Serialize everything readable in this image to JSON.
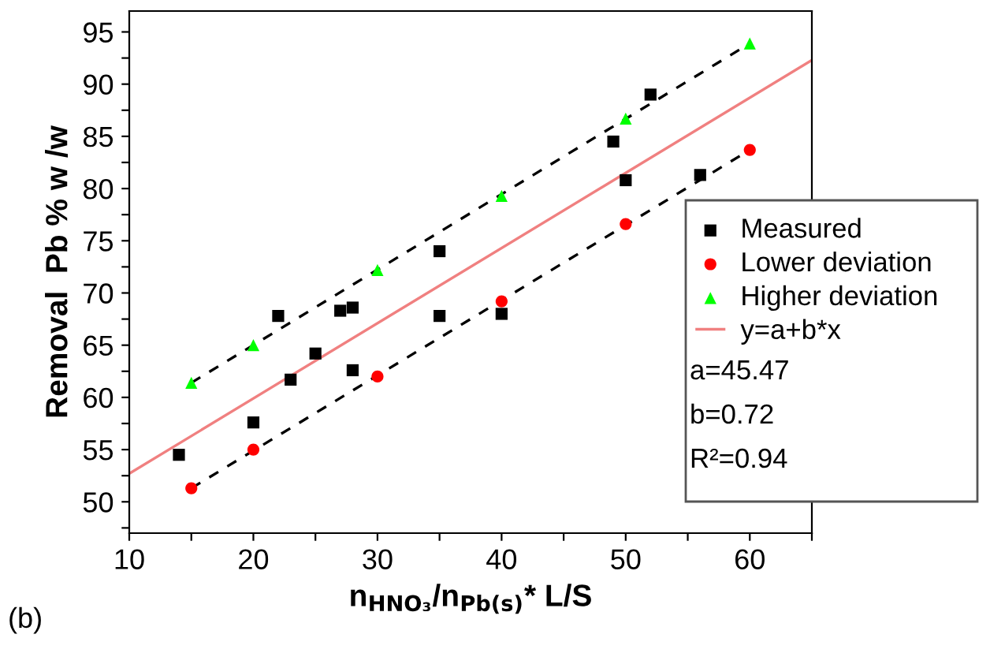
{
  "chart_data": {
    "type": "scatter",
    "xlabel": "n$_{HNO₃}$/n$_{Pb(s)}$* L/S",
    "ylabel": "Removal  Pb % w /w",
    "series": [
      {
        "name": "Measured",
        "marker": "square",
        "color": "#000000",
        "x": [
          14,
          20,
          22,
          23,
          25,
          27,
          28,
          28,
          35,
          35,
          40,
          49,
          50,
          52,
          56
        ],
        "values": [
          54.5,
          57.6,
          67.8,
          61.7,
          64.2,
          68.3,
          68.6,
          62.6,
          74,
          67.8,
          68,
          84.5,
          80.8,
          89,
          81.3
        ]
      },
      {
        "name": "Lower deviation",
        "marker": "circle",
        "color": "#ff0000",
        "x": [
          15,
          20,
          30,
          40,
          50,
          60
        ],
        "values": [
          51.3,
          55,
          62,
          69.2,
          76.6,
          83.7
        ]
      },
      {
        "name": "Higher deviation",
        "marker": "triangle",
        "color": "#00ff00",
        "x": [
          15,
          20,
          30,
          40,
          50,
          60
        ],
        "values": [
          61.4,
          65,
          72.2,
          79.3,
          86.7,
          93.9
        ]
      },
      {
        "name": "y=a+b*x",
        "type": "line",
        "line_style": "solid",
        "color": "#f08080",
        "x": [
          10,
          65
        ],
        "values": [
          52.7,
          92.3
        ]
      },
      {
        "type": "line",
        "line_style": "dashed",
        "color": "#000000",
        "x": [
          15,
          60
        ],
        "values": [
          51.3,
          83.7
        ]
      },
      {
        "type": "line",
        "line_style": "dashed",
        "color": "#000000",
        "x": [
          15,
          60
        ],
        "values": [
          61.4,
          93.9
        ]
      }
    ],
    "xlim": [
      10,
      65
    ],
    "ylim": [
      47,
      97
    ],
    "xticks": [
      10,
      {
        "value": 15,
        "label": null
      },
      20,
      {
        "value": 25,
        "label": null
      },
      30,
      {
        "value": 35,
        "label": null
      },
      40,
      {
        "value": 45,
        "label": null
      },
      50,
      {
        "value": 55,
        "label": null
      },
      60,
      {
        "value": 65,
        "label": null
      }
    ],
    "yticks": [
      {
        "value": 47.5,
        "label": null
      },
      50,
      {
        "value": 52.5,
        "label": null
      },
      55,
      {
        "value": 57.5,
        "label": null
      },
      60,
      {
        "value": 62.5,
        "label": null
      },
      65,
      {
        "value": 67.5,
        "label": null
      },
      70,
      {
        "value": 72.5,
        "label": null
      },
      75,
      {
        "value": 77.5,
        "label": null
      },
      80,
      {
        "value": 82.5,
        "label": null
      },
      85,
      {
        "value": 87.5,
        "label": null
      },
      90,
      {
        "value": 92.5,
        "label": null
      },
      95
    ],
    "legend": "bottom right",
    "grid": false,
    "annotations": [
      "a=45.47",
      "b=0.72",
      "R²=0.94",
      "(b)"
    ]
  }
}
